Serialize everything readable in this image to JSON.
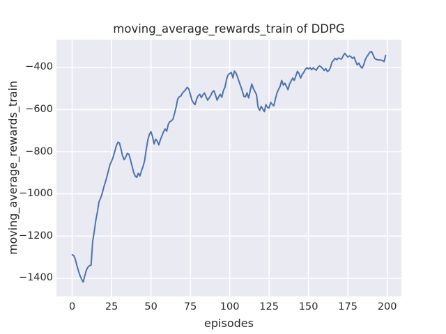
{
  "chart_data": {
    "type": "line",
    "title": "moving_average_rewards_train of DDPG",
    "xlabel": "episodes",
    "ylabel": "moving_average_rewards_train",
    "grid": true,
    "legend_position": "none",
    "xlim": [
      -10,
      209
    ],
    "ylim": [
      -1486,
      -269
    ],
    "xticks": {
      "values": [
        0,
        25,
        50,
        75,
        100,
        125,
        150,
        175,
        200
      ],
      "labels": [
        "0",
        "25",
        "50",
        "75",
        "100",
        "125",
        "150",
        "175",
        "200"
      ]
    },
    "yticks": {
      "values": [
        -400,
        -600,
        -800,
        -1000,
        -1200,
        -1400
      ],
      "labels": [
        "−400",
        "−600",
        "−800",
        "−1000",
        "−1200",
        "−1400"
      ]
    },
    "colors": {
      "line": "#4C72B0",
      "plot_background": "#EAEAF2",
      "grid": "#FFFFFF",
      "figure_background": "#FFFFFF",
      "text": "#262626"
    },
    "series": [
      {
        "name": "moving_average_rewards_train",
        "x_start": 0,
        "x_step": 1,
        "values": [
          -1288,
          -1293,
          -1310,
          -1340,
          -1365,
          -1388,
          -1405,
          -1418,
          -1388,
          -1362,
          -1347,
          -1340,
          -1338,
          -1225,
          -1180,
          -1125,
          -1085,
          -1038,
          -1020,
          -1000,
          -970,
          -945,
          -920,
          -890,
          -862,
          -845,
          -825,
          -800,
          -772,
          -755,
          -758,
          -788,
          -820,
          -838,
          -825,
          -808,
          -812,
          -838,
          -868,
          -898,
          -915,
          -922,
          -902,
          -915,
          -890,
          -870,
          -842,
          -790,
          -745,
          -718,
          -705,
          -728,
          -763,
          -741,
          -750,
          -768,
          -743,
          -725,
          -705,
          -692,
          -703,
          -670,
          -658,
          -654,
          -645,
          -618,
          -588,
          -550,
          -539,
          -536,
          -522,
          -514,
          -506,
          -495,
          -502,
          -528,
          -556,
          -568,
          -577,
          -550,
          -535,
          -528,
          -544,
          -530,
          -522,
          -540,
          -556,
          -545,
          -533,
          -517,
          -511,
          -532,
          -556,
          -540,
          -528,
          -542,
          -510,
          -495,
          -457,
          -435,
          -430,
          -424,
          -450,
          -418,
          -428,
          -446,
          -470,
          -490,
          -512,
          -538,
          -540,
          -521,
          -545,
          -512,
          -479,
          -500,
          -515,
          -530,
          -588,
          -604,
          -585,
          -598,
          -610,
          -577,
          -590,
          -593,
          -566,
          -576,
          -583,
          -550,
          -522,
          -505,
          -490,
          -462,
          -484,
          -475,
          -490,
          -506,
          -479,
          -465,
          -451,
          -462,
          -440,
          -419,
          -430,
          -451,
          -435,
          -424,
          -410,
          -402,
          -408,
          -402,
          -411,
          -403,
          -409,
          -414,
          -400,
          -393,
          -398,
          -406,
          -415,
          -406,
          -420,
          -415,
          -400,
          -375,
          -366,
          -358,
          -364,
          -356,
          -359,
          -361,
          -346,
          -334,
          -343,
          -351,
          -346,
          -350,
          -358,
          -352,
          -373,
          -389,
          -380,
          -395,
          -404,
          -390,
          -365,
          -350,
          -340,
          -328,
          -325,
          -340,
          -358,
          -362,
          -365,
          -365,
          -366,
          -368,
          -373,
          -344
        ]
      }
    ]
  }
}
